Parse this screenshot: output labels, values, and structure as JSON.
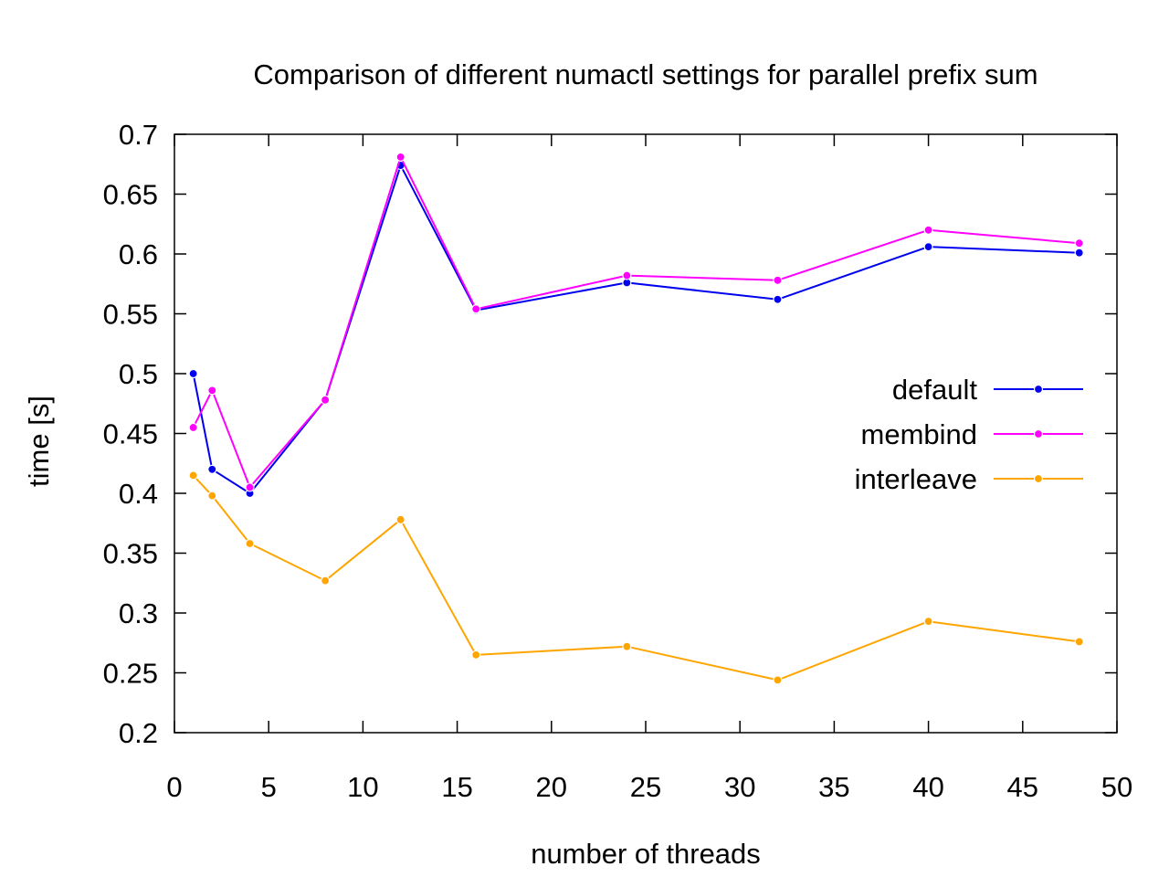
{
  "chart_data": {
    "type": "line",
    "title": "Comparison of different numactl settings for parallel prefix sum",
    "xlabel": "number of threads",
    "ylabel": "time [s]",
    "xlim": [
      0,
      50
    ],
    "ylim": [
      0.2,
      0.7
    ],
    "xticks": [
      0,
      5,
      10,
      15,
      20,
      25,
      30,
      35,
      40,
      45,
      50
    ],
    "yticks": [
      0.2,
      0.25,
      0.3,
      0.35,
      0.4,
      0.45,
      0.5,
      0.55,
      0.6,
      0.65,
      0.7
    ],
    "xtick_labels": [
      "0",
      "5",
      "10",
      "15",
      "20",
      "25",
      "30",
      "35",
      "40",
      "45",
      "50"
    ],
    "ytick_labels": [
      "0.2",
      "0.25",
      "0.3",
      "0.35",
      "0.4",
      "0.45",
      "0.5",
      "0.55",
      "0.6",
      "0.65",
      "0.7"
    ],
    "grid": false,
    "legend_position": "right",
    "x": [
      1,
      2,
      4,
      8,
      12,
      16,
      24,
      32,
      40,
      48
    ],
    "series": [
      {
        "name": "default",
        "color": "#0000ee",
        "values": [
          0.5,
          0.42,
          0.4,
          0.478,
          0.674,
          0.553,
          0.576,
          0.562,
          0.606,
          0.601
        ]
      },
      {
        "name": "membind",
        "color": "#ff00ff",
        "values": [
          0.455,
          0.486,
          0.405,
          0.478,
          0.681,
          0.554,
          0.582,
          0.578,
          0.62,
          0.609
        ]
      },
      {
        "name": "interleave",
        "color": "#ffa500",
        "values": [
          0.415,
          0.398,
          0.358,
          0.327,
          0.378,
          0.265,
          0.272,
          0.244,
          0.293,
          0.276
        ]
      }
    ]
  }
}
